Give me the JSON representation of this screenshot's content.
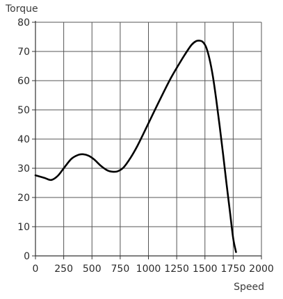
{
  "chart_data": {
    "type": "line",
    "title": "",
    "xlabel": "Speed",
    "ylabel": "Torque",
    "xlim": [
      0,
      2000
    ],
    "ylim": [
      0,
      80
    ],
    "xticks": [
      0,
      250,
      500,
      750,
      1000,
      1250,
      1500,
      1750,
      2000
    ],
    "yticks": [
      0,
      10,
      20,
      30,
      40,
      50,
      60,
      70,
      80
    ],
    "grid": true,
    "legend": "none",
    "colors": {
      "line": "#000000",
      "grid": "#555555",
      "axis": "#333333"
    },
    "series": [
      {
        "x": [
          0,
          80,
          140,
          200,
          260,
          320,
          380,
          420,
          470,
          520,
          580,
          640,
          690,
          730,
          780,
          840,
          900,
          960,
          1020,
          1080,
          1140,
          1200,
          1260,
          1320,
          1380,
          1420,
          1450,
          1480,
          1510,
          1540,
          1570,
          1600,
          1630,
          1660,
          1690,
          1720,
          1750,
          1775
        ],
        "y": [
          27.6,
          26.7,
          26.0,
          27.5,
          30.5,
          33.3,
          34.6,
          34.8,
          34.3,
          33.0,
          30.8,
          29.2,
          28.8,
          29.0,
          30.3,
          33.5,
          37.5,
          42.2,
          47.0,
          51.8,
          56.5,
          61.0,
          65.0,
          68.8,
          72.2,
          73.5,
          73.7,
          73.3,
          71.5,
          67.5,
          61.5,
          53.5,
          44.5,
          35.0,
          25.0,
          15.5,
          6.0,
          1.3
        ]
      }
    ]
  }
}
